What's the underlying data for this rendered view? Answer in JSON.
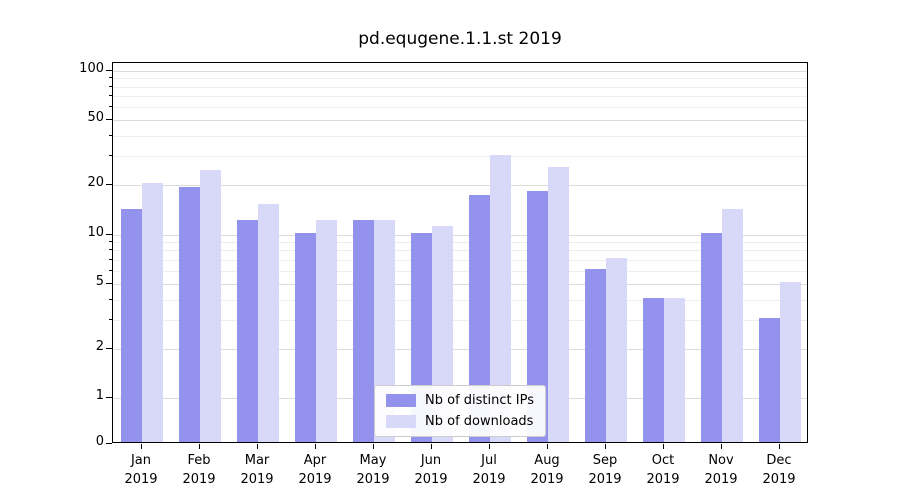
{
  "chart_data": {
    "type": "bar",
    "title": "pd.equgene.1.1.st 2019",
    "categories": [
      {
        "month": "Jan",
        "year": "2019"
      },
      {
        "month": "Feb",
        "year": "2019"
      },
      {
        "month": "Mar",
        "year": "2019"
      },
      {
        "month": "Apr",
        "year": "2019"
      },
      {
        "month": "May",
        "year": "2019"
      },
      {
        "month": "Jun",
        "year": "2019"
      },
      {
        "month": "Jul",
        "year": "2019"
      },
      {
        "month": "Aug",
        "year": "2019"
      },
      {
        "month": "Sep",
        "year": "2019"
      },
      {
        "month": "Oct",
        "year": "2019"
      },
      {
        "month": "Nov",
        "year": "2019"
      },
      {
        "month": "Dec",
        "year": "2019"
      }
    ],
    "series": [
      {
        "name": "Nb of distinct IPs",
        "color": "#9393ee",
        "values": [
          14,
          19,
          12,
          10,
          12,
          10,
          17,
          18,
          6,
          4,
          10,
          3
        ]
      },
      {
        "name": "Nb of downloads",
        "color": "#d8d8f8",
        "values": [
          20,
          24,
          15,
          12,
          12,
          11,
          30,
          25,
          7,
          4,
          14,
          5
        ]
      }
    ],
    "yscale": "log (linear below 1, 0 at baseline)",
    "yticks": [
      0,
      1,
      2,
      5,
      10,
      20,
      50,
      100
    ],
    "minor_yticks": [
      3,
      4,
      6,
      7,
      8,
      9,
      30,
      40,
      60,
      70,
      80,
      90
    ],
    "ylim": [
      0,
      112
    ],
    "xlabel": "",
    "ylabel": "",
    "grid": true,
    "legend_position": "lower center",
    "colors": {
      "grid_major": "#dcdcdc",
      "grid_minor": "#ededed",
      "axis": "#000000",
      "legend_border": "#cccccc",
      "background": "#ffffff"
    }
  }
}
